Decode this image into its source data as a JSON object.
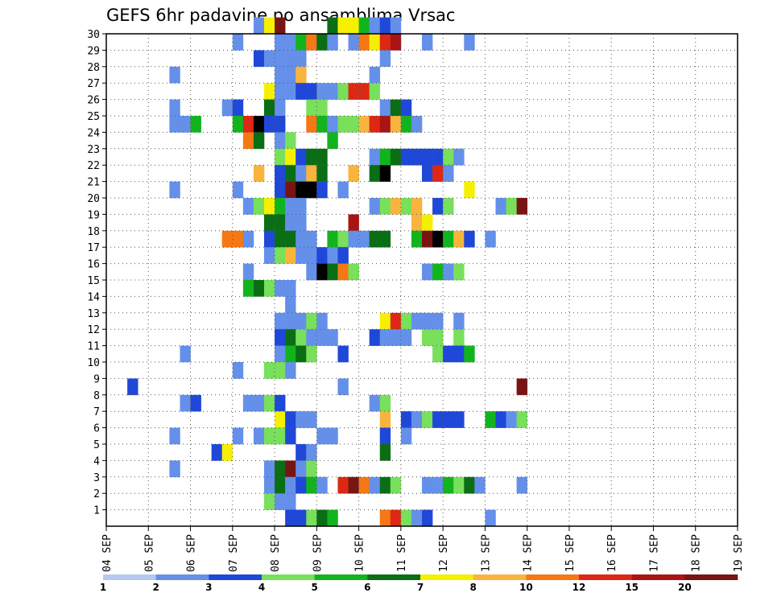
{
  "chart_data": {
    "type": "heatmap",
    "title": "GEFS 6hr padavine po ansamblima Vrsac",
    "xlabel": "",
    "ylabel": "",
    "x_tick_labels": [
      "04 SEP",
      "05 SEP",
      "06 SEP",
      "07 SEP",
      "08 SEP",
      "09 SEP",
      "10 SEP",
      "11 SEP",
      "12 SEP",
      "13 SEP",
      "14 SEP",
      "15 SEP",
      "16 SEP",
      "17 SEP",
      "18 SEP",
      "19 SEP"
    ],
    "x_range_steps": [
      0,
      60
    ],
    "steps_per_day": 4,
    "y_tick_labels": [
      "1",
      "2",
      "3",
      "4",
      "5",
      "6",
      "7",
      "8",
      "9",
      "10",
      "11",
      "12",
      "13",
      "14",
      "15",
      "16",
      "17",
      "18",
      "19",
      "20",
      "21",
      "22",
      "23",
      "24",
      "25",
      "26",
      "27",
      "28",
      "29",
      "30"
    ],
    "y_range": [
      0,
      30
    ],
    "grid": true,
    "colorbar": {
      "labels": [
        "1",
        "2",
        "3",
        "4",
        "5",
        "6",
        "7",
        "8",
        "10",
        "12",
        "15",
        "20"
      ],
      "colors": [
        "#b4c8f0",
        "#6490ea",
        "#1f48d8",
        "#78e05a",
        "#12b41e",
        "#0a6e14",
        "#f5f000",
        "#f8b43c",
        "#f57814",
        "#dc2814",
        "#aa1414",
        "#781414"
      ]
    },
    "cells": [
      [
        30,
        14,
        1
      ],
      [
        30,
        15,
        6
      ],
      [
        30,
        16,
        11
      ],
      [
        30,
        21,
        5
      ],
      [
        30,
        22,
        6
      ],
      [
        30,
        23,
        6
      ],
      [
        30,
        24,
        4
      ],
      [
        30,
        25,
        1
      ],
      [
        30,
        26,
        2
      ],
      [
        30,
        27,
        1
      ],
      [
        29,
        12,
        1
      ],
      [
        29,
        16,
        1
      ],
      [
        29,
        17,
        1
      ],
      [
        29,
        18,
        4
      ],
      [
        29,
        19,
        8
      ],
      [
        29,
        20,
        5
      ],
      [
        29,
        21,
        1
      ],
      [
        29,
        23,
        1
      ],
      [
        29,
        24,
        8
      ],
      [
        29,
        25,
        6
      ],
      [
        29,
        26,
        9
      ],
      [
        29,
        27,
        10
      ],
      [
        29,
        30,
        1
      ],
      [
        29,
        34,
        1
      ],
      [
        28,
        14,
        2
      ],
      [
        28,
        15,
        1
      ],
      [
        28,
        16,
        1
      ],
      [
        28,
        17,
        1
      ],
      [
        28,
        18,
        1
      ],
      [
        28,
        26,
        1
      ],
      [
        27,
        6,
        1
      ],
      [
        27,
        16,
        1
      ],
      [
        27,
        17,
        1
      ],
      [
        27,
        18,
        7
      ],
      [
        27,
        25,
        1
      ],
      [
        26,
        15,
        6
      ],
      [
        26,
        16,
        1
      ],
      [
        26,
        17,
        1
      ],
      [
        26,
        18,
        2
      ],
      [
        26,
        19,
        2
      ],
      [
        26,
        20,
        1
      ],
      [
        26,
        21,
        1
      ],
      [
        26,
        22,
        3
      ],
      [
        26,
        23,
        9
      ],
      [
        26,
        24,
        9
      ],
      [
        26,
        25,
        3
      ],
      [
        25,
        6,
        1
      ],
      [
        25,
        11,
        1
      ],
      [
        25,
        12,
        2
      ],
      [
        25,
        15,
        5
      ],
      [
        25,
        16,
        1
      ],
      [
        25,
        19,
        3
      ],
      [
        25,
        20,
        3
      ],
      [
        25,
        26,
        1
      ],
      [
        25,
        27,
        5
      ],
      [
        25,
        28,
        2
      ],
      [
        24,
        6,
        1
      ],
      [
        24,
        7,
        1
      ],
      [
        24,
        8,
        4
      ],
      [
        24,
        12,
        4
      ],
      [
        24,
        13,
        9
      ],
      [
        24,
        14,
        12
      ],
      [
        24,
        15,
        2
      ],
      [
        24,
        16,
        2
      ],
      [
        24,
        19,
        8
      ],
      [
        24,
        20,
        4
      ],
      [
        24,
        21,
        1
      ],
      [
        24,
        22,
        3
      ],
      [
        24,
        23,
        3
      ],
      [
        24,
        24,
        7
      ],
      [
        24,
        25,
        9
      ],
      [
        24,
        26,
        10
      ],
      [
        24,
        27,
        7
      ],
      [
        24,
        28,
        4
      ],
      [
        24,
        29,
        1
      ],
      [
        23,
        13,
        8
      ],
      [
        23,
        14,
        5
      ],
      [
        23,
        16,
        1
      ],
      [
        23,
        17,
        3
      ],
      [
        23,
        21,
        4
      ],
      [
        22,
        16,
        3
      ],
      [
        22,
        17,
        6
      ],
      [
        22,
        18,
        2
      ],
      [
        22,
        19,
        5
      ],
      [
        22,
        20,
        5
      ],
      [
        22,
        25,
        1
      ],
      [
        22,
        26,
        4
      ],
      [
        22,
        27,
        5
      ],
      [
        22,
        28,
        2
      ],
      [
        22,
        29,
        2
      ],
      [
        22,
        30,
        2
      ],
      [
        22,
        31,
        2
      ],
      [
        22,
        32,
        3
      ],
      [
        22,
        33,
        1
      ],
      [
        21,
        14,
        7
      ],
      [
        21,
        16,
        2
      ],
      [
        21,
        17,
        5
      ],
      [
        21,
        18,
        1
      ],
      [
        21,
        19,
        7
      ],
      [
        21,
        20,
        5
      ],
      [
        21,
        23,
        7
      ],
      [
        21,
        25,
        5
      ],
      [
        21,
        26,
        12
      ],
      [
        21,
        30,
        2
      ],
      [
        21,
        31,
        9
      ],
      [
        21,
        32,
        1
      ],
      [
        20,
        6,
        1
      ],
      [
        20,
        12,
        1
      ],
      [
        20,
        16,
        2
      ],
      [
        20,
        17,
        11
      ],
      [
        20,
        18,
        12
      ],
      [
        20,
        19,
        12
      ],
      [
        20,
        20,
        2
      ],
      [
        20,
        22,
        1
      ],
      [
        20,
        34,
        6
      ],
      [
        19,
        13,
        1
      ],
      [
        19,
        14,
        3
      ],
      [
        19,
        15,
        6
      ],
      [
        19,
        16,
        4
      ],
      [
        19,
        17,
        1
      ],
      [
        19,
        18,
        1
      ],
      [
        19,
        25,
        1
      ],
      [
        19,
        26,
        3
      ],
      [
        19,
        27,
        7
      ],
      [
        19,
        28,
        3
      ],
      [
        19,
        29,
        7
      ],
      [
        19,
        31,
        2
      ],
      [
        19,
        32,
        3
      ],
      [
        19,
        37,
        1
      ],
      [
        19,
        38,
        3
      ],
      [
        19,
        39,
        11
      ],
      [
        18,
        15,
        5
      ],
      [
        18,
        16,
        5
      ],
      [
        18,
        17,
        1
      ],
      [
        18,
        18,
        1
      ],
      [
        18,
        23,
        10
      ],
      [
        18,
        29,
        7
      ],
      [
        18,
        30,
        6
      ],
      [
        17,
        11,
        8
      ],
      [
        17,
        12,
        8
      ],
      [
        17,
        13,
        1
      ],
      [
        17,
        15,
        2
      ],
      [
        17,
        16,
        5
      ],
      [
        17,
        17,
        5
      ],
      [
        17,
        18,
        1
      ],
      [
        17,
        19,
        1
      ],
      [
        17,
        21,
        4
      ],
      [
        17,
        22,
        3
      ],
      [
        17,
        23,
        1
      ],
      [
        17,
        24,
        1
      ],
      [
        17,
        25,
        5
      ],
      [
        17,
        26,
        5
      ],
      [
        17,
        29,
        4
      ],
      [
        17,
        30,
        11
      ],
      [
        17,
        31,
        12
      ],
      [
        17,
        32,
        4
      ],
      [
        17,
        33,
        7
      ],
      [
        17,
        34,
        2
      ],
      [
        17,
        36,
        1
      ],
      [
        16,
        15,
        1
      ],
      [
        16,
        16,
        3
      ],
      [
        16,
        17,
        7
      ],
      [
        16,
        18,
        1
      ],
      [
        16,
        19,
        1
      ],
      [
        16,
        20,
        2
      ],
      [
        16,
        21,
        1
      ],
      [
        16,
        22,
        2
      ],
      [
        15,
        13,
        1
      ],
      [
        15,
        19,
        1
      ],
      [
        15,
        20,
        12
      ],
      [
        15,
        21,
        5
      ],
      [
        15,
        22,
        8
      ],
      [
        15,
        23,
        3
      ],
      [
        15,
        30,
        1
      ],
      [
        15,
        31,
        4
      ],
      [
        15,
        32,
        1
      ],
      [
        15,
        33,
        3
      ],
      [
        14,
        13,
        4
      ],
      [
        14,
        14,
        5
      ],
      [
        14,
        15,
        3
      ],
      [
        14,
        16,
        1
      ],
      [
        14,
        17,
        1
      ],
      [
        13,
        17,
        1
      ],
      [
        12,
        16,
        1
      ],
      [
        12,
        17,
        1
      ],
      [
        12,
        18,
        1
      ],
      [
        12,
        19,
        3
      ],
      [
        12,
        20,
        1
      ],
      [
        12,
        26,
        6
      ],
      [
        12,
        27,
        9
      ],
      [
        12,
        28,
        3
      ],
      [
        12,
        29,
        1
      ],
      [
        12,
        30,
        1
      ],
      [
        12,
        31,
        1
      ],
      [
        12,
        33,
        1
      ],
      [
        11,
        16,
        2
      ],
      [
        11,
        17,
        5
      ],
      [
        11,
        18,
        3
      ],
      [
        11,
        19,
        1
      ],
      [
        11,
        20,
        1
      ],
      [
        11,
        21,
        1
      ],
      [
        11,
        25,
        2
      ],
      [
        11,
        26,
        1
      ],
      [
        11,
        27,
        1
      ],
      [
        11,
        28,
        1
      ],
      [
        11,
        30,
        3
      ],
      [
        11,
        31,
        3
      ],
      [
        11,
        33,
        3
      ],
      [
        10,
        7,
        1
      ],
      [
        10,
        16,
        1
      ],
      [
        10,
        17,
        4
      ],
      [
        10,
        18,
        5
      ],
      [
        10,
        19,
        3
      ],
      [
        10,
        22,
        2
      ],
      [
        10,
        31,
        3
      ],
      [
        10,
        32,
        2
      ],
      [
        10,
        33,
        2
      ],
      [
        10,
        34,
        4
      ],
      [
        9,
        12,
        1
      ],
      [
        9,
        15,
        3
      ],
      [
        9,
        16,
        3
      ],
      [
        9,
        17,
        1
      ],
      [
        8,
        2,
        2
      ],
      [
        8,
        22,
        1
      ],
      [
        8,
        39,
        11
      ],
      [
        7,
        7,
        1
      ],
      [
        7,
        8,
        2
      ],
      [
        7,
        13,
        1
      ],
      [
        7,
        14,
        1
      ],
      [
        7,
        15,
        3
      ],
      [
        7,
        16,
        2
      ],
      [
        7,
        25,
        1
      ],
      [
        7,
        26,
        3
      ],
      [
        6,
        16,
        6
      ],
      [
        6,
        17,
        2
      ],
      [
        6,
        18,
        1
      ],
      [
        6,
        19,
        1
      ],
      [
        6,
        26,
        7
      ],
      [
        6,
        28,
        2
      ],
      [
        6,
        29,
        1
      ],
      [
        6,
        30,
        3
      ],
      [
        6,
        31,
        2
      ],
      [
        6,
        32,
        2
      ],
      [
        6,
        33,
        2
      ],
      [
        6,
        36,
        4
      ],
      [
        6,
        37,
        2
      ],
      [
        6,
        38,
        1
      ],
      [
        6,
        39,
        3
      ],
      [
        5,
        6,
        1
      ],
      [
        5,
        12,
        1
      ],
      [
        5,
        14,
        1
      ],
      [
        5,
        15,
        3
      ],
      [
        5,
        16,
        3
      ],
      [
        5,
        17,
        2
      ],
      [
        5,
        20,
        1
      ],
      [
        5,
        21,
        1
      ],
      [
        5,
        26,
        2
      ],
      [
        5,
        28,
        1
      ],
      [
        4,
        10,
        2
      ],
      [
        4,
        11,
        6
      ],
      [
        4,
        18,
        2
      ],
      [
        4,
        19,
        1
      ],
      [
        4,
        26,
        5
      ],
      [
        3,
        6,
        1
      ],
      [
        3,
        15,
        1
      ],
      [
        3,
        16,
        5
      ],
      [
        3,
        17,
        11
      ],
      [
        3,
        18,
        1
      ],
      [
        3,
        19,
        3
      ],
      [
        2,
        15,
        1
      ],
      [
        2,
        16,
        5
      ],
      [
        2,
        17,
        1
      ],
      [
        2,
        18,
        2
      ],
      [
        2,
        19,
        4
      ],
      [
        2,
        20,
        1
      ],
      [
        2,
        22,
        9
      ],
      [
        2,
        23,
        11
      ],
      [
        2,
        24,
        8
      ],
      [
        2,
        25,
        1
      ],
      [
        2,
        26,
        5
      ],
      [
        2,
        27,
        3
      ],
      [
        2,
        30,
        1
      ],
      [
        2,
        31,
        1
      ],
      [
        2,
        32,
        4
      ],
      [
        2,
        33,
        3
      ],
      [
        2,
        34,
        5
      ],
      [
        2,
        35,
        1
      ],
      [
        2,
        39,
        1
      ],
      [
        1,
        15,
        3
      ],
      [
        1,
        16,
        1
      ],
      [
        1,
        17,
        1
      ],
      [
        0,
        17,
        2
      ],
      [
        0,
        18,
        2
      ],
      [
        0,
        19,
        3
      ],
      [
        0,
        20,
        5
      ],
      [
        0,
        21,
        4
      ],
      [
        0,
        26,
        8
      ],
      [
        0,
        27,
        9
      ],
      [
        0,
        28,
        3
      ],
      [
        0,
        29,
        1
      ],
      [
        0,
        30,
        2
      ],
      [
        0,
        36,
        1
      ]
    ]
  }
}
